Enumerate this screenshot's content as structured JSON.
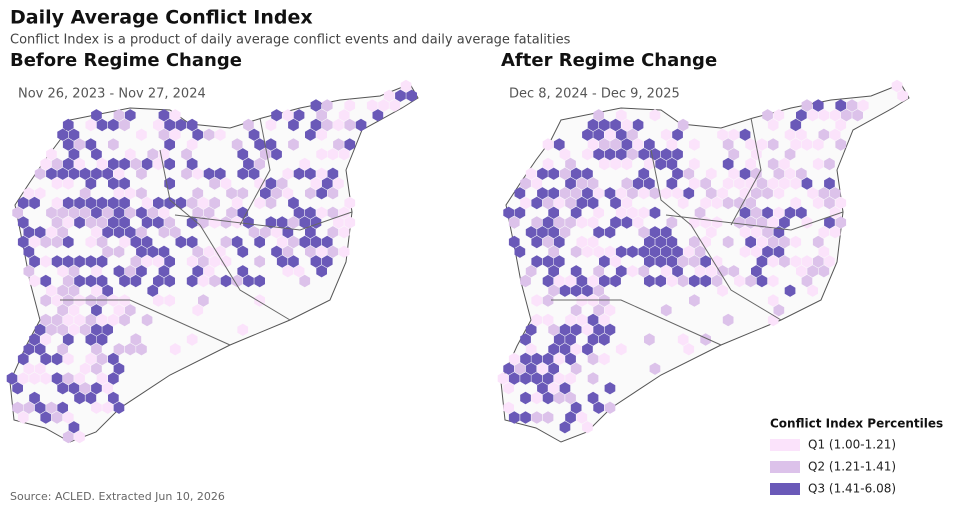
{
  "header": {
    "title": "Daily Average Conflict Index",
    "subtitle": "Conflict Index is a product of daily average conflict events and daily average fatalities"
  },
  "panels": [
    {
      "title": "Before Regime Change",
      "period": "Nov 26, 2023 - Nov 27, 2024"
    },
    {
      "title": "After Regime Change",
      "period": "Dec 8, 2024 - Dec 9, 2025"
    }
  ],
  "legend": {
    "title": "Conflict Index Percentiles",
    "items": [
      {
        "label": "Q1 (1.00-1.21)",
        "color": "#fbe3fb"
      },
      {
        "label": "Q2 (1.21-1.41)",
        "color": "#dcc2ea"
      },
      {
        "label": "Q3 (1.41-6.08)",
        "color": "#6a59b8"
      }
    ]
  },
  "source": "Source: ACLED. Extracted Jun 10, 2026"
}
